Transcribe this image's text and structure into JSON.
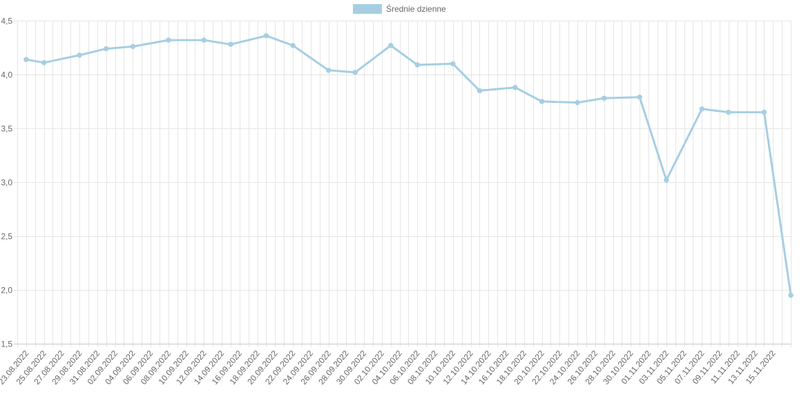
{
  "chart_data": {
    "type": "line",
    "series": [
      {
        "name": "Średnie dzienne",
        "color": "#a6cee3",
        "points": [
          {
            "x": "23.08.2022",
            "y": 4.14
          },
          {
            "x": "25.08.2022",
            "y": 4.11
          },
          {
            "x": "29.08.2022",
            "y": 4.18
          },
          {
            "x": "01.09.2022",
            "y": 4.24
          },
          {
            "x": "04.09.2022",
            "y": 4.26
          },
          {
            "x": "08.09.2022",
            "y": 4.32
          },
          {
            "x": "12.09.2022",
            "y": 4.32
          },
          {
            "x": "15.09.2022",
            "y": 4.28
          },
          {
            "x": "19.09.2022",
            "y": 4.36
          },
          {
            "x": "22.09.2022",
            "y": 4.27
          },
          {
            "x": "26.09.2022",
            "y": 4.04
          },
          {
            "x": "29.09.2022",
            "y": 4.02
          },
          {
            "x": "03.10.2022",
            "y": 4.27
          },
          {
            "x": "06.10.2022",
            "y": 4.09
          },
          {
            "x": "10.10.2022",
            "y": 4.1
          },
          {
            "x": "13.10.2022",
            "y": 3.85
          },
          {
            "x": "17.10.2022",
            "y": 3.88
          },
          {
            "x": "20.10.2022",
            "y": 3.75
          },
          {
            "x": "24.10.2022",
            "y": 3.74
          },
          {
            "x": "27.10.2022",
            "y": 3.78
          },
          {
            "x": "31.10.2022",
            "y": 3.79
          },
          {
            "x": "03.11.2022",
            "y": 3.02
          },
          {
            "x": "07.11.2022",
            "y": 3.68
          },
          {
            "x": "10.11.2022",
            "y": 3.65
          },
          {
            "x": "14.11.2022",
            "y": 3.65
          },
          {
            "x": "17.11.2022",
            "y": 1.95
          }
        ]
      }
    ],
    "x_tick_labels": [
      "23.08.2022",
      "25.08.2022",
      "27.08.2022",
      "29.08.2022",
      "31.08.2022",
      "02.09.2022",
      "04.09.2022",
      "06.09.2022",
      "08.09.2022",
      "10.09.2022",
      "12.09.2022",
      "14.09.2022",
      "16.09.2022",
      "18.09.2022",
      "20.09.2022",
      "22.09.2022",
      "24.09.2022",
      "26.09.2022",
      "28.09.2022",
      "30.09.2022",
      "02.10.2022",
      "04.10.2022",
      "06.10.2022",
      "08.10.2022",
      "10.10.2022",
      "12.10.2022",
      "14.10.2022",
      "16.10.2022",
      "18.10.2022",
      "20.10.2022",
      "22.10.2022",
      "24.10.2022",
      "26.10.2022",
      "28.10.2022",
      "30.10.2022",
      "01.11.2022",
      "03.11.2022",
      "05.11.2022",
      "07.11.2022",
      "09.11.2022",
      "11.11.2022",
      "13.11.2022",
      "15.11.2022"
    ],
    "x_range": [
      "22.08.2022",
      "17.11.2022"
    ],
    "y_ticks": [
      "1,5",
      "2,0",
      "2,5",
      "3,0",
      "3,5",
      "4,0",
      "4,5"
    ],
    "ylim": [
      1.5,
      4.5
    ],
    "grid": true,
    "legend": "top-center",
    "title": "",
    "xlabel": "",
    "ylabel": ""
  }
}
